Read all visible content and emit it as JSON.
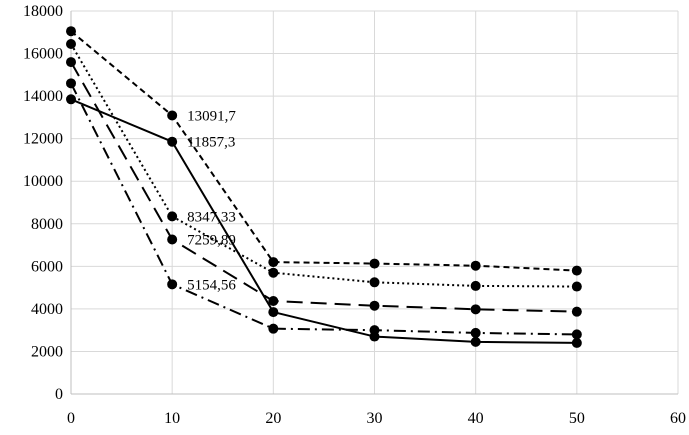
{
  "chart_data": {
    "type": "line",
    "title": "",
    "xlabel": "",
    "ylabel": "",
    "xlim": [
      0,
      60
    ],
    "ylim": [
      0,
      18000
    ],
    "x_ticks": [
      "0",
      "10",
      "20",
      "30",
      "40",
      "50",
      "60"
    ],
    "y_ticks": [
      "0",
      "2000",
      "4000",
      "6000",
      "8000",
      "10000",
      "12000",
      "14000",
      "16000",
      "18000"
    ],
    "grid": "horizontal and vertical",
    "legend": "none",
    "x": [
      0,
      10,
      20,
      30,
      40,
      50
    ],
    "series": [
      {
        "style": "short-dash",
        "values": [
          17050,
          13091.7,
          6200,
          6130,
          6030,
          5800
        ]
      },
      {
        "style": "solid",
        "values": [
          13850,
          11857.3,
          3850,
          2700,
          2450,
          2400
        ]
      },
      {
        "style": "dotted",
        "values": [
          16450,
          8347.33,
          5700,
          5250,
          5080,
          5050
        ]
      },
      {
        "style": "long-dash",
        "values": [
          15600,
          7259.89,
          4370,
          4150,
          3980,
          3870
        ]
      },
      {
        "style": "dash-dot",
        "values": [
          14600,
          5154.56,
          3070,
          3000,
          2870,
          2800
        ]
      }
    ],
    "data_labels": [
      {
        "x": 10,
        "y": 13091.7,
        "text": "13091,7"
      },
      {
        "x": 10,
        "y": 11857.3,
        "text": "11857,3"
      },
      {
        "x": 10,
        "y": 8347.33,
        "text": "8347,33"
      },
      {
        "x": 10,
        "y": 7259.89,
        "text": "7259,89"
      },
      {
        "x": 10,
        "y": 5154.56,
        "text": "5154,56"
      }
    ]
  }
}
